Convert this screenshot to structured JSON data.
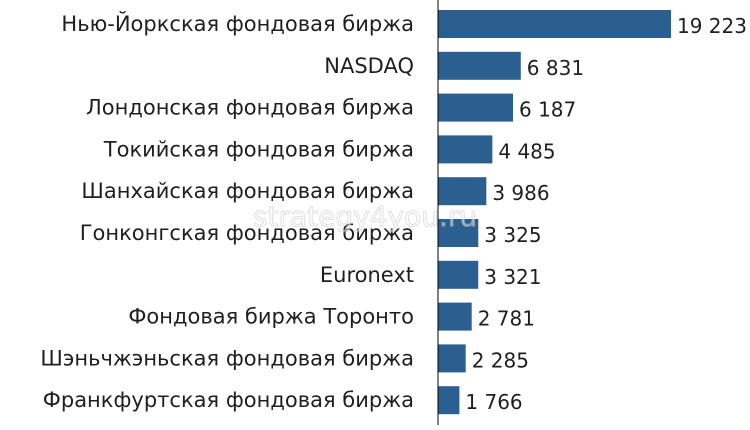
{
  "chart_data": {
    "type": "bar",
    "orientation": "horizontal",
    "categories": [
      "Нью-Йоркская фондовая биржа",
      "NASDAQ",
      "Лондонская фондовая биржа",
      "Токийская фондовая биржа",
      "Шанхайская фондовая биржа",
      "Гонконгская фондовая биржа",
      "Euronext",
      "Фондовая биржа Торонто",
      "Шэньчжэньская фондовая биржа",
      "Франкфуртская фондовая биржа"
    ],
    "values": [
      19223,
      6831,
      6187,
      4485,
      3986,
      3325,
      3321,
      2781,
      2285,
      1766
    ],
    "value_labels": [
      "19 223",
      "6 831",
      "6 187",
      "4 485",
      "3 986",
      "3 325",
      "3 321",
      "2 781",
      "2 285",
      "1 766"
    ],
    "xlim": [
      0,
      19223
    ],
    "grid": false,
    "bar_color": "#2a5f8f",
    "axis_color": "#000000"
  },
  "watermark": "strategy4you.ru"
}
